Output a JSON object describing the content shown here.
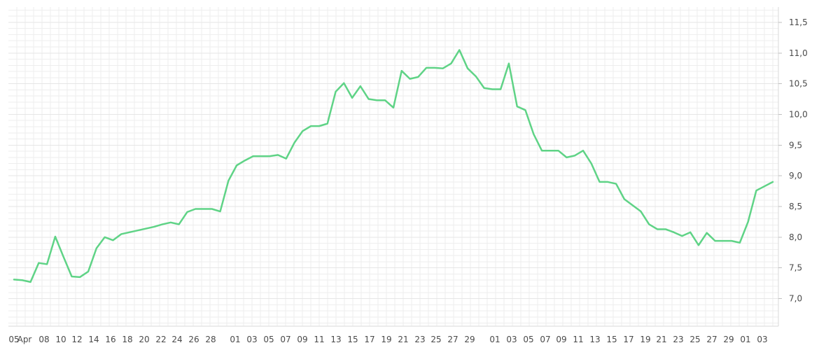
{
  "chart_data": {
    "type": "line",
    "title": "",
    "xlabel": "",
    "ylabel": "",
    "ylim": [
      6.55,
      11.75
    ],
    "y_ticks": [
      7.0,
      7.5,
      8.0,
      8.5,
      9.0,
      9.5,
      10.0,
      10.5,
      11.0,
      11.5
    ],
    "y_tick_labels": [
      "7,0",
      "7,5",
      "8,0",
      "8,5",
      "9,0",
      "9,5",
      "10,0",
      "10,5",
      "11,0",
      "11,5"
    ],
    "y_axis_position": "right",
    "grid": true,
    "legend": "none",
    "colors": {
      "line": "#5fd386",
      "grid": "#eeeeee",
      "text": "#4a4a4a"
    },
    "x_tick_labels": [
      "05",
      "Apr",
      "08",
      "10",
      "12",
      "14",
      "16",
      "18",
      "20",
      "22",
      "24",
      "26",
      "28",
      "01",
      "03",
      "05",
      "07",
      "09",
      "11",
      "13",
      "15",
      "17",
      "19",
      "21",
      "23",
      "25",
      "27",
      "29",
      "01",
      "03",
      "05",
      "07",
      "09",
      "11",
      "13",
      "15",
      "17",
      "19",
      "21",
      "23",
      "25",
      "27",
      "29",
      "01",
      "03"
    ],
    "series": [
      {
        "values": [
          7.31,
          7.3,
          7.27,
          7.58,
          7.56,
          8.01,
          7.68,
          7.36,
          7.35,
          7.44,
          7.82,
          8.0,
          7.95,
          8.05,
          8.08,
          8.11,
          8.14,
          8.17,
          8.21,
          8.24,
          8.21,
          8.41,
          8.46,
          8.46,
          8.46,
          8.42,
          8.92,
          9.17,
          9.25,
          9.32,
          9.32,
          9.32,
          9.34,
          9.28,
          9.54,
          9.73,
          9.81,
          9.81,
          9.85,
          10.37,
          10.51,
          10.27,
          10.46,
          10.25,
          10.23,
          10.23,
          10.11,
          10.71,
          10.58,
          10.61,
          10.76,
          10.76,
          10.75,
          10.83,
          11.05,
          10.75,
          10.62,
          10.43,
          10.41,
          10.41,
          10.83,
          10.13,
          10.07,
          9.68,
          9.41,
          9.41,
          9.41,
          9.3,
          9.33,
          9.41,
          9.2,
          8.9,
          8.9,
          8.87,
          8.62,
          8.52,
          8.42,
          8.21,
          8.13,
          8.13,
          8.08,
          8.02,
          8.08,
          7.87,
          8.07,
          7.94,
          7.94,
          7.94,
          7.91,
          8.25,
          8.76,
          8.83,
          8.9
        ]
      }
    ]
  }
}
